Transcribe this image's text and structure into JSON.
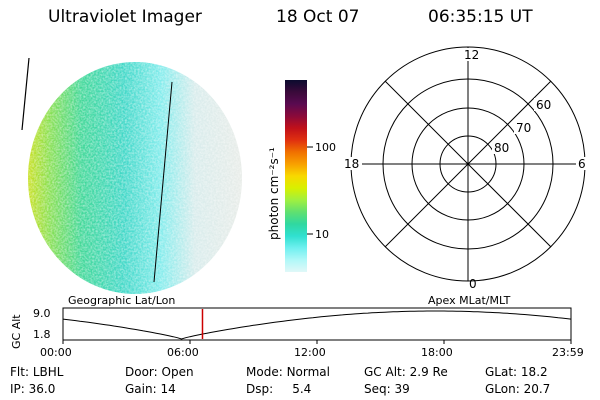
{
  "header": {
    "title": "Ultraviolet Imager",
    "date": "18 Oct 07",
    "time": "06:35:15 UT"
  },
  "colorbar": {
    "unit_label": "photon cm⁻²s⁻¹",
    "ticks": [
      "100",
      "10"
    ],
    "colors": [
      "#0b0b2e",
      "#3a0a3a",
      "#5a0a50",
      "#8a0a3a",
      "#c0101a",
      "#e03010",
      "#f07000",
      "#f8a000",
      "#f8d800",
      "#d8f000",
      "#a0f040",
      "#60e070",
      "#30d8a0",
      "#30e0d0",
      "#70f0f0",
      "#b0f8f8",
      "#e0f8f8"
    ]
  },
  "polar_plot": {
    "latitude_labels": [
      "60",
      "70",
      "80"
    ],
    "mlt_labels": {
      "top": "12",
      "left": "18",
      "right": "6",
      "bottom": "0"
    }
  },
  "timeline": {
    "left_label": "Geographic Lat/Lon",
    "right_label": "Apex MLat/MLT",
    "y_axis_label": "GC Alt",
    "y_ticks": [
      "9.0",
      "1.8"
    ],
    "x_ticks": [
      "00:00",
      "06:00",
      "12:00",
      "18:00",
      "23:59"
    ],
    "current_time_hours": 6.59,
    "marker_color": "#cc0000"
  },
  "info": {
    "row1": [
      {
        "label": "Flt:",
        "value": "LBHL"
      },
      {
        "label": "Door:",
        "value": "Open"
      },
      {
        "label": "Mode:",
        "value": "Normal"
      },
      {
        "label": "GC Alt:",
        "value": "2.9 Re"
      },
      {
        "label": "GLat:",
        "value": "18.2"
      }
    ],
    "row2": [
      {
        "label": "IP:",
        "value": "36.0"
      },
      {
        "label": "Gain:",
        "value": "14"
      },
      {
        "label": "Dsp:",
        "value": "5.4"
      },
      {
        "label": "Seq:",
        "value": "39"
      },
      {
        "label": "GLon:",
        "value": "20.7"
      }
    ]
  }
}
